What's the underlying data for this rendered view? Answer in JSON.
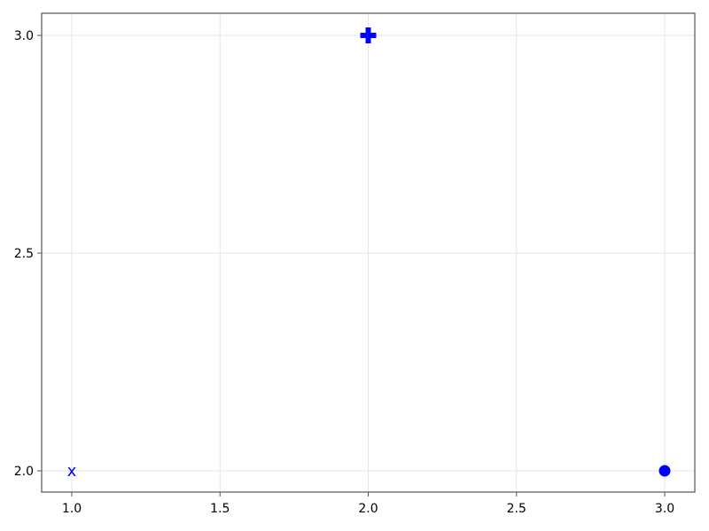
{
  "chart_data": {
    "type": "scatter",
    "title": "",
    "xlabel": "",
    "ylabel": "",
    "xlim": [
      0.9,
      3.1
    ],
    "ylim": [
      1.95,
      3.05
    ],
    "grid": true,
    "xticks": [
      "1.0",
      "1.5",
      "2.0",
      "2.5",
      "3.0"
    ],
    "yticks": [
      "2.0",
      "2.5",
      "3.0"
    ],
    "points": [
      {
        "x": 1,
        "y": 2,
        "marker": "x-char",
        "color": "#0000ff"
      },
      {
        "x": 2,
        "y": 3,
        "marker": "cross",
        "color": "#0000ff"
      },
      {
        "x": 3,
        "y": 2,
        "marker": "circle",
        "color": "#0000ff"
      }
    ]
  }
}
